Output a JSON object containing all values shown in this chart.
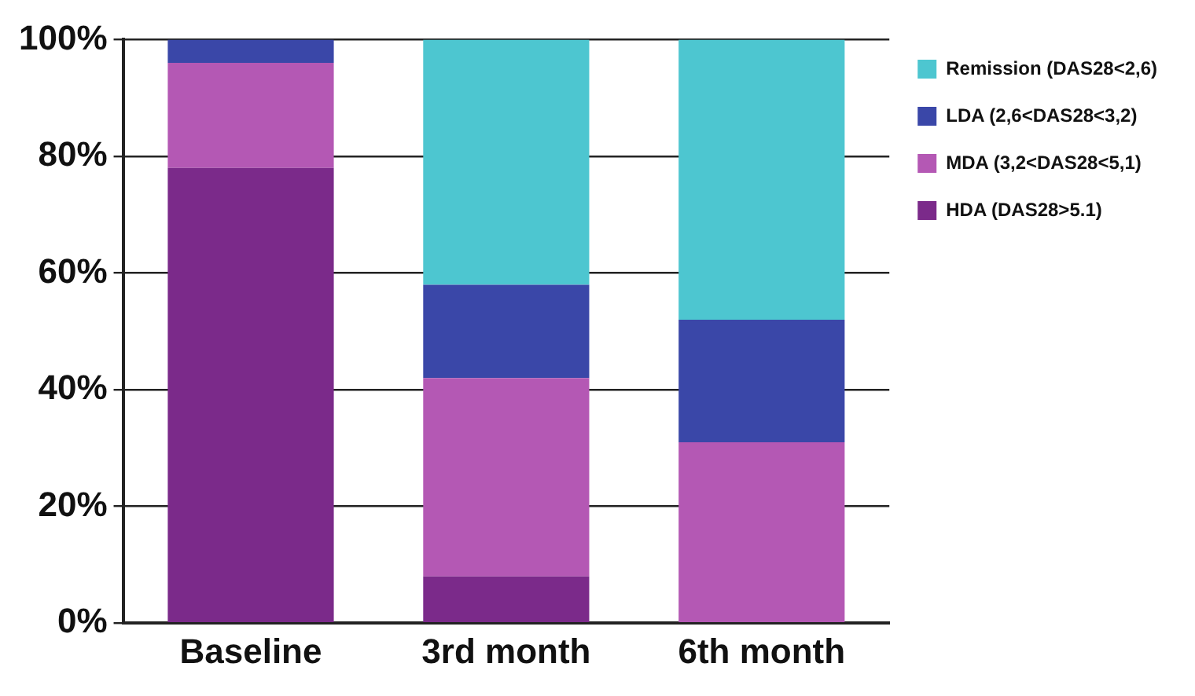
{
  "chart_data": {
    "type": "bar",
    "stacked": true,
    "categories": [
      "Baseline",
      "3rd month",
      "6th month"
    ],
    "series": [
      {
        "name": "HDA (DAS28>5.1)",
        "color": "#7b2a8a",
        "values": [
          78,
          8,
          0
        ]
      },
      {
        "name": "MDA (3,2<DAS28<5,1)",
        "color": "#b458b4",
        "values": [
          18,
          34,
          31
        ]
      },
      {
        "name": "LDA (2,6<DAS28<3,2)",
        "color": "#3a47a8",
        "values": [
          4,
          16,
          21
        ]
      },
      {
        "name": "Remission (DAS28<2,6)",
        "color": "#4dc6d0",
        "values": [
          0,
          42,
          48
        ]
      }
    ],
    "ylim": [
      0,
      100
    ],
    "yticks": [
      {
        "value": 0,
        "label": "0%"
      },
      {
        "value": 20,
        "label": "20%"
      },
      {
        "value": 40,
        "label": "40%"
      },
      {
        "value": 60,
        "label": "60%"
      },
      {
        "value": 80,
        "label": "80%"
      },
      {
        "value": 100,
        "label": "100%"
      }
    ],
    "grid": "y",
    "legend": "top right"
  }
}
